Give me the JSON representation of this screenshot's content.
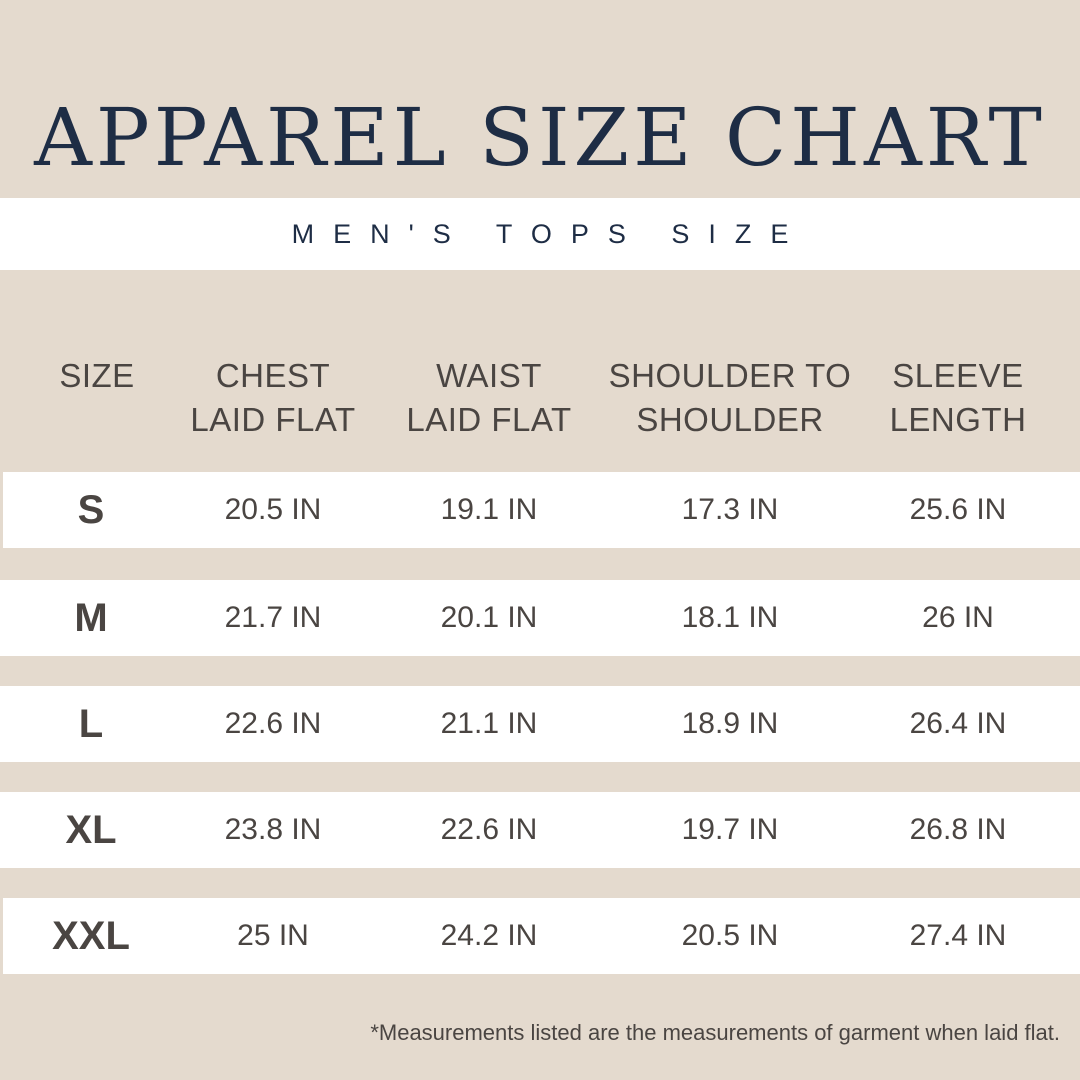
{
  "title": "APPAREL SIZE CHART",
  "subtitle": "MEN'S TOPS SIZE",
  "headers": {
    "size": "SIZE",
    "chest": [
      "CHEST",
      "LAID FLAT"
    ],
    "waist": [
      "WAIST",
      "LAID FLAT"
    ],
    "shoulder": [
      "SHOULDER TO",
      "SHOULDER"
    ],
    "sleeve": [
      "SLEEVE",
      "LENGTH"
    ]
  },
  "rows": [
    {
      "size": "S",
      "chest": "20.5 IN",
      "waist": "19.1 IN",
      "shoulder": "17.3 IN",
      "sleeve": "25.6 IN"
    },
    {
      "size": "M",
      "chest": "21.7 IN",
      "waist": "20.1 IN",
      "shoulder": "18.1 IN",
      "sleeve": "26 IN"
    },
    {
      "size": "L",
      "chest": "22.6 IN",
      "waist": "21.1 IN",
      "shoulder": "18.9 IN",
      "sleeve": "26.4 IN"
    },
    {
      "size": "XL",
      "chest": "23.8 IN",
      "waist": "22.6 IN",
      "shoulder": "19.7 IN",
      "sleeve": "26.8 IN"
    },
    {
      "size": "XXL",
      "chest": "25 IN",
      "waist": "24.2 IN",
      "shoulder": "20.5 IN",
      "sleeve": "27.4 IN"
    }
  ],
  "footnote": "*Measurements listed are the measurements  of garment when laid flat.",
  "colors": {
    "background": "#e4dace",
    "band": "#ffffff",
    "title": "#1e2d45",
    "text": "#4a4542"
  }
}
